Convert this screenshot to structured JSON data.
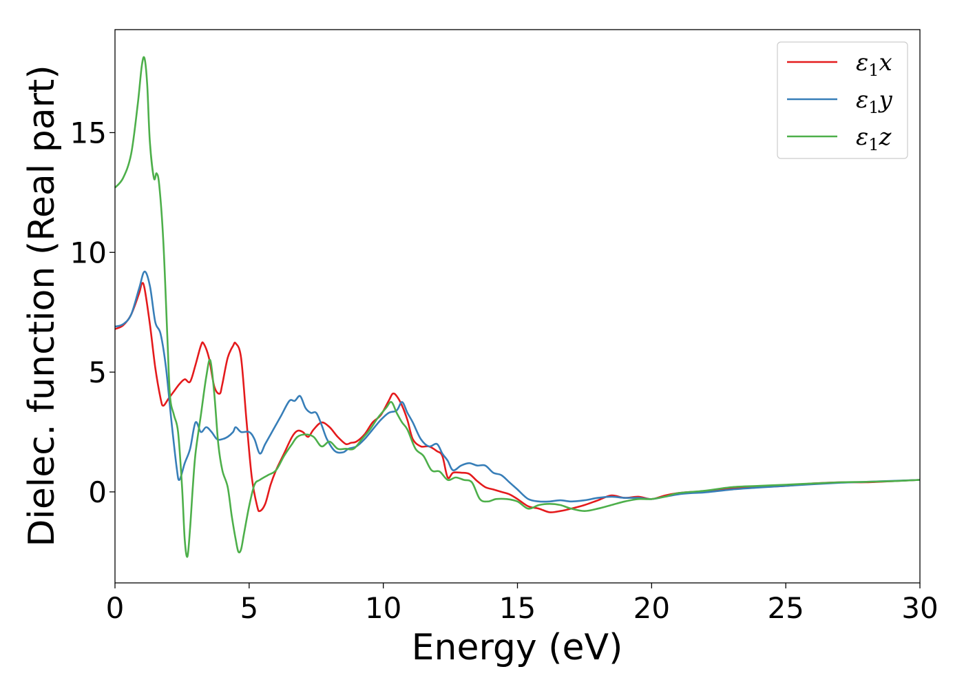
{
  "chart_data": {
    "type": "line",
    "xlabel": "Energy (eV)",
    "ylabel": "Dielec. function (Real part)",
    "xlim": [
      0,
      30
    ],
    "ylim": [
      -3.8,
      19.3
    ],
    "xticks": [
      {
        "value": 0,
        "label": "0"
      },
      {
        "value": 5,
        "label": "5"
      },
      {
        "value": 10,
        "label": "10"
      },
      {
        "value": 15,
        "label": "15"
      },
      {
        "value": 20,
        "label": "20"
      },
      {
        "value": 25,
        "label": "25"
      },
      {
        "value": 30,
        "label": "30"
      }
    ],
    "yticks": [
      {
        "value": 0,
        "label": "0"
      },
      {
        "value": 5,
        "label": "5"
      },
      {
        "value": 10,
        "label": "10"
      },
      {
        "value": 15,
        "label": "15"
      }
    ],
    "grid": false,
    "legend_position": "top-right",
    "series": [
      {
        "name": "ε1x",
        "name_base": "ε",
        "name_sub": "1",
        "name_var": "x",
        "color": "#e41a1c",
        "x": [
          0,
          0.3,
          0.6,
          0.9,
          1.0,
          1.1,
          1.3,
          1.5,
          1.7,
          1.8,
          2.0,
          2.2,
          2.4,
          2.6,
          2.8,
          3.0,
          3.2,
          3.3,
          3.5,
          3.7,
          3.9,
          4.0,
          4.2,
          4.4,
          4.5,
          4.7,
          4.9,
          5.1,
          5.3,
          5.4,
          5.6,
          5.8,
          6.0,
          6.3,
          6.6,
          6.8,
          7.0,
          7.2,
          7.4,
          7.7,
          8.0,
          8.3,
          8.6,
          8.8,
          9.0,
          9.3,
          9.6,
          9.9,
          10.2,
          10.35,
          10.5,
          10.7,
          10.9,
          11.1,
          11.4,
          11.7,
          12.0,
          12.2,
          12.4,
          12.6,
          12.9,
          13.2,
          13.5,
          13.8,
          14.1,
          14.4,
          14.7,
          15.0,
          15.4,
          15.8,
          16.2,
          16.6,
          17.0,
          17.5,
          18.0,
          18.5,
          19.0,
          19.5,
          20.0,
          20.5,
          21.0,
          21.5,
          22.0,
          23.0,
          24.0,
          25.0,
          26.0,
          27.0,
          28.0,
          29.0,
          30.0
        ],
        "y": [
          6.8,
          6.95,
          7.4,
          8.3,
          8.7,
          8.5,
          7.0,
          5.2,
          3.9,
          3.6,
          3.9,
          4.2,
          4.5,
          4.7,
          4.6,
          5.3,
          6.1,
          6.2,
          5.6,
          4.4,
          4.1,
          4.5,
          5.6,
          6.1,
          6.2,
          5.6,
          3.0,
          0.6,
          -0.6,
          -0.8,
          -0.5,
          0.3,
          0.9,
          1.6,
          2.3,
          2.55,
          2.5,
          2.3,
          2.6,
          2.9,
          2.7,
          2.3,
          2.0,
          2.05,
          2.1,
          2.4,
          2.9,
          3.2,
          3.8,
          4.1,
          4.0,
          3.6,
          3.0,
          2.2,
          1.9,
          1.9,
          1.7,
          1.5,
          0.6,
          0.8,
          0.8,
          0.75,
          0.45,
          0.2,
          0.1,
          0.0,
          -0.1,
          -0.3,
          -0.6,
          -0.7,
          -0.85,
          -0.8,
          -0.7,
          -0.55,
          -0.35,
          -0.15,
          -0.25,
          -0.2,
          -0.3,
          -0.15,
          -0.05,
          0.0,
          0.0,
          0.15,
          0.2,
          0.25,
          0.35,
          0.4,
          0.4,
          0.45,
          0.5
        ]
      },
      {
        "name": "ε1y",
        "name_base": "ε",
        "name_sub": "1",
        "name_var": "y",
        "color": "#377eb8",
        "x": [
          0,
          0.3,
          0.6,
          0.9,
          1.1,
          1.3,
          1.5,
          1.7,
          1.9,
          2.1,
          2.3,
          2.4,
          2.6,
          2.8,
          3.0,
          3.2,
          3.4,
          3.6,
          3.8,
          4.0,
          4.2,
          4.4,
          4.5,
          4.7,
          5.0,
          5.2,
          5.4,
          5.6,
          5.9,
          6.2,
          6.5,
          6.7,
          6.9,
          7.1,
          7.3,
          7.5,
          7.7,
          7.9,
          8.2,
          8.5,
          8.7,
          9.0,
          9.3,
          9.6,
          9.9,
          10.2,
          10.5,
          10.7,
          10.9,
          11.1,
          11.4,
          11.7,
          12.0,
          12.2,
          12.4,
          12.6,
          12.9,
          13.2,
          13.5,
          13.8,
          14.1,
          14.4,
          14.7,
          15.0,
          15.4,
          15.8,
          16.2,
          16.6,
          17.0,
          17.5,
          18.0,
          18.5,
          19.0,
          19.5,
          20.0,
          20.5,
          21.0,
          21.5,
          22.0,
          23.0,
          24.0,
          25.0,
          26.0,
          27.0,
          28.0,
          29.0,
          30.0
        ],
        "y": [
          6.9,
          7.0,
          7.4,
          8.5,
          9.2,
          8.6,
          7.1,
          6.6,
          5.2,
          3.0,
          1.0,
          0.5,
          1.2,
          1.8,
          2.9,
          2.5,
          2.7,
          2.5,
          2.2,
          2.2,
          2.3,
          2.5,
          2.7,
          2.5,
          2.5,
          2.2,
          1.6,
          2.0,
          2.6,
          3.2,
          3.8,
          3.8,
          4.0,
          3.5,
          3.3,
          3.3,
          2.8,
          2.2,
          1.7,
          1.65,
          1.8,
          1.9,
          2.2,
          2.6,
          3.0,
          3.3,
          3.4,
          3.75,
          3.3,
          2.9,
          2.2,
          1.9,
          2.0,
          1.6,
          1.3,
          0.9,
          1.1,
          1.2,
          1.1,
          1.1,
          0.8,
          0.7,
          0.4,
          0.1,
          -0.3,
          -0.4,
          -0.4,
          -0.35,
          -0.4,
          -0.35,
          -0.25,
          -0.2,
          -0.25,
          -0.25,
          -0.3,
          -0.2,
          -0.1,
          -0.05,
          -0.02,
          0.1,
          0.18,
          0.25,
          0.32,
          0.38,
          0.42,
          0.46,
          0.5
        ]
      },
      {
        "name": "ε1z",
        "name_base": "ε",
        "name_sub": "1",
        "name_var": "z",
        "color": "#4daf4a",
        "x": [
          0,
          0.3,
          0.6,
          0.85,
          1.0,
          1.1,
          1.2,
          1.3,
          1.45,
          1.55,
          1.65,
          1.8,
          1.95,
          2.05,
          2.2,
          2.35,
          2.5,
          2.6,
          2.7,
          2.8,
          2.9,
          3.0,
          3.2,
          3.4,
          3.55,
          3.7,
          3.85,
          4.0,
          4.2,
          4.35,
          4.5,
          4.6,
          4.7,
          4.8,
          5.0,
          5.2,
          5.4,
          5.7,
          6.0,
          6.3,
          6.6,
          6.8,
          7.1,
          7.4,
          7.7,
          8.0,
          8.3,
          8.6,
          8.9,
          9.2,
          9.5,
          9.8,
          10.1,
          10.3,
          10.5,
          10.7,
          10.9,
          11.2,
          11.5,
          11.8,
          12.1,
          12.4,
          12.7,
          13.0,
          13.3,
          13.6,
          13.9,
          14.2,
          14.6,
          15.0,
          15.4,
          15.8,
          16.2,
          16.6,
          17.0,
          17.5,
          18.0,
          18.5,
          19.0,
          19.5,
          20.0,
          20.5,
          21.0,
          22.0,
          23.0,
          24.0,
          25.0,
          26.0,
          27.0,
          28.0,
          29.0,
          30.0
        ],
        "y": [
          12.7,
          13.1,
          14.1,
          16.2,
          17.8,
          18.1,
          17.0,
          14.6,
          13.1,
          13.3,
          12.8,
          10.5,
          6.5,
          4.0,
          3.2,
          2.5,
          0.2,
          -2.0,
          -2.7,
          -1.5,
          0.2,
          1.6,
          3.2,
          4.8,
          5.5,
          4.1,
          2.0,
          0.9,
          0.2,
          -1.0,
          -2.0,
          -2.5,
          -2.4,
          -1.8,
          -0.6,
          0.3,
          0.5,
          0.7,
          0.9,
          1.5,
          2.0,
          2.3,
          2.4,
          2.3,
          1.9,
          2.1,
          1.8,
          1.8,
          1.8,
          2.2,
          2.6,
          3.1,
          3.5,
          3.75,
          3.3,
          2.9,
          2.6,
          1.8,
          1.5,
          0.9,
          0.85,
          0.5,
          0.6,
          0.5,
          0.4,
          -0.3,
          -0.4,
          -0.3,
          -0.3,
          -0.4,
          -0.7,
          -0.55,
          -0.5,
          -0.55,
          -0.7,
          -0.8,
          -0.7,
          -0.55,
          -0.4,
          -0.3,
          -0.3,
          -0.2,
          -0.05,
          0.05,
          0.2,
          0.25,
          0.3,
          0.35,
          0.4,
          0.42,
          0.45,
          0.5
        ]
      }
    ]
  }
}
